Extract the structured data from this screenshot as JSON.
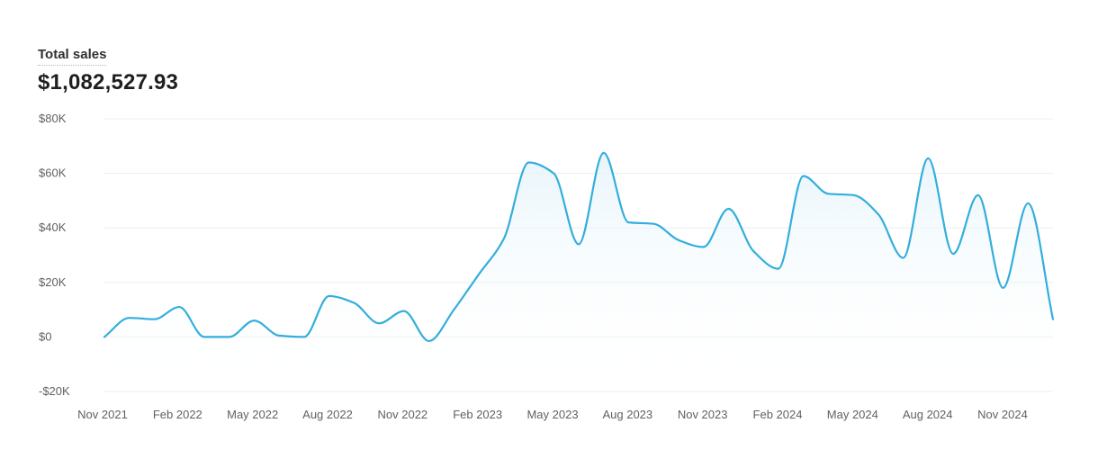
{
  "header": {
    "title": "Total sales",
    "value": "$1,082,527.93"
  },
  "colors": {
    "line": "#33AEDC",
    "grid": "#EDEDED",
    "tick_text": "#616161",
    "fill_top": "#E6F4FB"
  },
  "chart_data": {
    "type": "area",
    "title": "Total sales",
    "xlabel": "",
    "ylabel": "",
    "ylim": [
      -20000,
      80000
    ],
    "y_ticks": [
      80000,
      60000,
      40000,
      20000,
      0,
      -20000
    ],
    "y_tick_labels": [
      "$80K",
      "$60K",
      "$40K",
      "$20K",
      "$0",
      "-$20K"
    ],
    "x_tick_labels": [
      "Nov 2021",
      "Feb 2022",
      "May 2022",
      "Aug 2022",
      "Nov 2022",
      "Feb 2023",
      "May 2023",
      "Aug 2023",
      "Nov 2023",
      "Feb 2024",
      "May 2024",
      "Aug 2024",
      "Nov 2024"
    ],
    "grid": true,
    "legend": "none",
    "series": [
      {
        "x": [
          "2021-11",
          "2021-12",
          "2022-01",
          "2022-02",
          "2022-03",
          "2022-04",
          "2022-05",
          "2022-06",
          "2022-07",
          "2022-08",
          "2022-09",
          "2022-10",
          "2022-11",
          "2022-12",
          "2023-01",
          "2023-02",
          "2023-03",
          "2023-04",
          "2023-05",
          "2023-06",
          "2023-07",
          "2023-08",
          "2023-09",
          "2023-10",
          "2023-11",
          "2023-12",
          "2024-01",
          "2024-02",
          "2024-03",
          "2024-04",
          "2024-05",
          "2024-06",
          "2024-07",
          "2024-08",
          "2024-09",
          "2024-10",
          "2024-11",
          "2024-12",
          "2025-01"
        ],
        "values": [
          0,
          7000,
          6500,
          11000,
          0,
          0,
          6000,
          500,
          0,
          15000,
          12500,
          5000,
          9500,
          -1500,
          10000,
          23000,
          36000,
          64000,
          60000,
          34000,
          67500,
          42000,
          41500,
          35500,
          33000,
          47000,
          31500,
          25000,
          59000,
          52500,
          52000,
          45000,
          29000,
          65500,
          30500,
          52000,
          18000,
          49000,
          6500
        ]
      }
    ]
  }
}
